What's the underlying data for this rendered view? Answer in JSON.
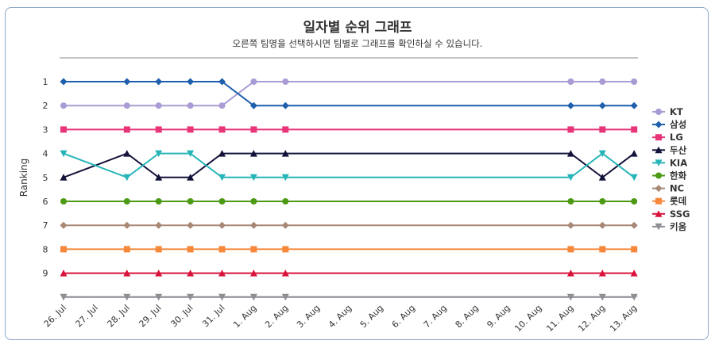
{
  "chart_data": {
    "type": "line",
    "title": "일자별 순위 그래프",
    "subtitle": "오른쪽 팀명을 선택하시면 팀별로 그래프를 확인하실 수 있습니다.",
    "xlabel": "",
    "ylabel": "Ranking",
    "y_reversed": true,
    "ylim": [
      1,
      10
    ],
    "y_ticks": [
      "1",
      "2",
      "3",
      "4",
      "5",
      "6",
      "7",
      "8",
      "9"
    ],
    "categories": [
      "26. Jul",
      "27. Jul",
      "28. Jul",
      "29. Jul",
      "30. Jul",
      "31. Jul",
      "1. Aug",
      "2. Aug",
      "3. Aug",
      "4. Aug",
      "5. Aug",
      "6. Aug",
      "7. Aug",
      "8. Aug",
      "9. Aug",
      "10. Aug",
      "11. Aug",
      "12. Aug",
      "13. Aug"
    ],
    "legend_position": "right",
    "series": [
      {
        "name": "KT",
        "color": "#a99bd4",
        "marker": "circle",
        "values": [
          2,
          null,
          2,
          2,
          2,
          2,
          1,
          1,
          null,
          null,
          null,
          null,
          null,
          null,
          null,
          null,
          1,
          1,
          1
        ]
      },
      {
        "name": "삼성",
        "color": "#1f5fad",
        "marker": "diamond",
        "values": [
          1,
          null,
          1,
          1,
          1,
          1,
          2,
          2,
          null,
          null,
          null,
          null,
          null,
          null,
          null,
          null,
          2,
          2,
          2
        ]
      },
      {
        "name": "LG",
        "color": "#e8357a",
        "marker": "square",
        "values": [
          3,
          null,
          3,
          3,
          3,
          3,
          3,
          3,
          null,
          null,
          null,
          null,
          null,
          null,
          null,
          null,
          3,
          3,
          3
        ]
      },
      {
        "name": "두산",
        "color": "#13123a",
        "marker": "triangle",
        "values": [
          5,
          null,
          4,
          5,
          5,
          4,
          4,
          4,
          null,
          null,
          null,
          null,
          null,
          null,
          null,
          null,
          4,
          5,
          4
        ]
      },
      {
        "name": "KIA",
        "color": "#27b5b8",
        "marker": "triangle-down",
        "values": [
          4,
          null,
          5,
          4,
          4,
          5,
          5,
          5,
          null,
          null,
          null,
          null,
          null,
          null,
          null,
          null,
          5,
          4,
          5
        ]
      },
      {
        "name": "한화",
        "color": "#4d9a15",
        "marker": "circle",
        "values": [
          6,
          null,
          6,
          6,
          6,
          6,
          6,
          6,
          null,
          null,
          null,
          null,
          null,
          null,
          null,
          null,
          6,
          6,
          6
        ]
      },
      {
        "name": "NC",
        "color": "#a88874",
        "marker": "diamond",
        "values": [
          7,
          null,
          7,
          7,
          7,
          7,
          7,
          7,
          null,
          null,
          null,
          null,
          null,
          null,
          null,
          null,
          7,
          7,
          7
        ]
      },
      {
        "name": "롯데",
        "color": "#f5883a",
        "marker": "square",
        "values": [
          8,
          null,
          8,
          8,
          8,
          8,
          8,
          8,
          null,
          null,
          null,
          null,
          null,
          null,
          null,
          null,
          8,
          8,
          8
        ]
      },
      {
        "name": "SSG",
        "color": "#d9133b",
        "marker": "triangle",
        "values": [
          9,
          null,
          9,
          9,
          9,
          9,
          9,
          9,
          null,
          null,
          null,
          null,
          null,
          null,
          null,
          null,
          9,
          9,
          9
        ]
      },
      {
        "name": "키움",
        "color": "#8e8e93",
        "marker": "triangle-down",
        "values": [
          10,
          null,
          10,
          10,
          10,
          10,
          10,
          10,
          null,
          null,
          null,
          null,
          null,
          null,
          null,
          null,
          10,
          10,
          10
        ]
      }
    ]
  }
}
